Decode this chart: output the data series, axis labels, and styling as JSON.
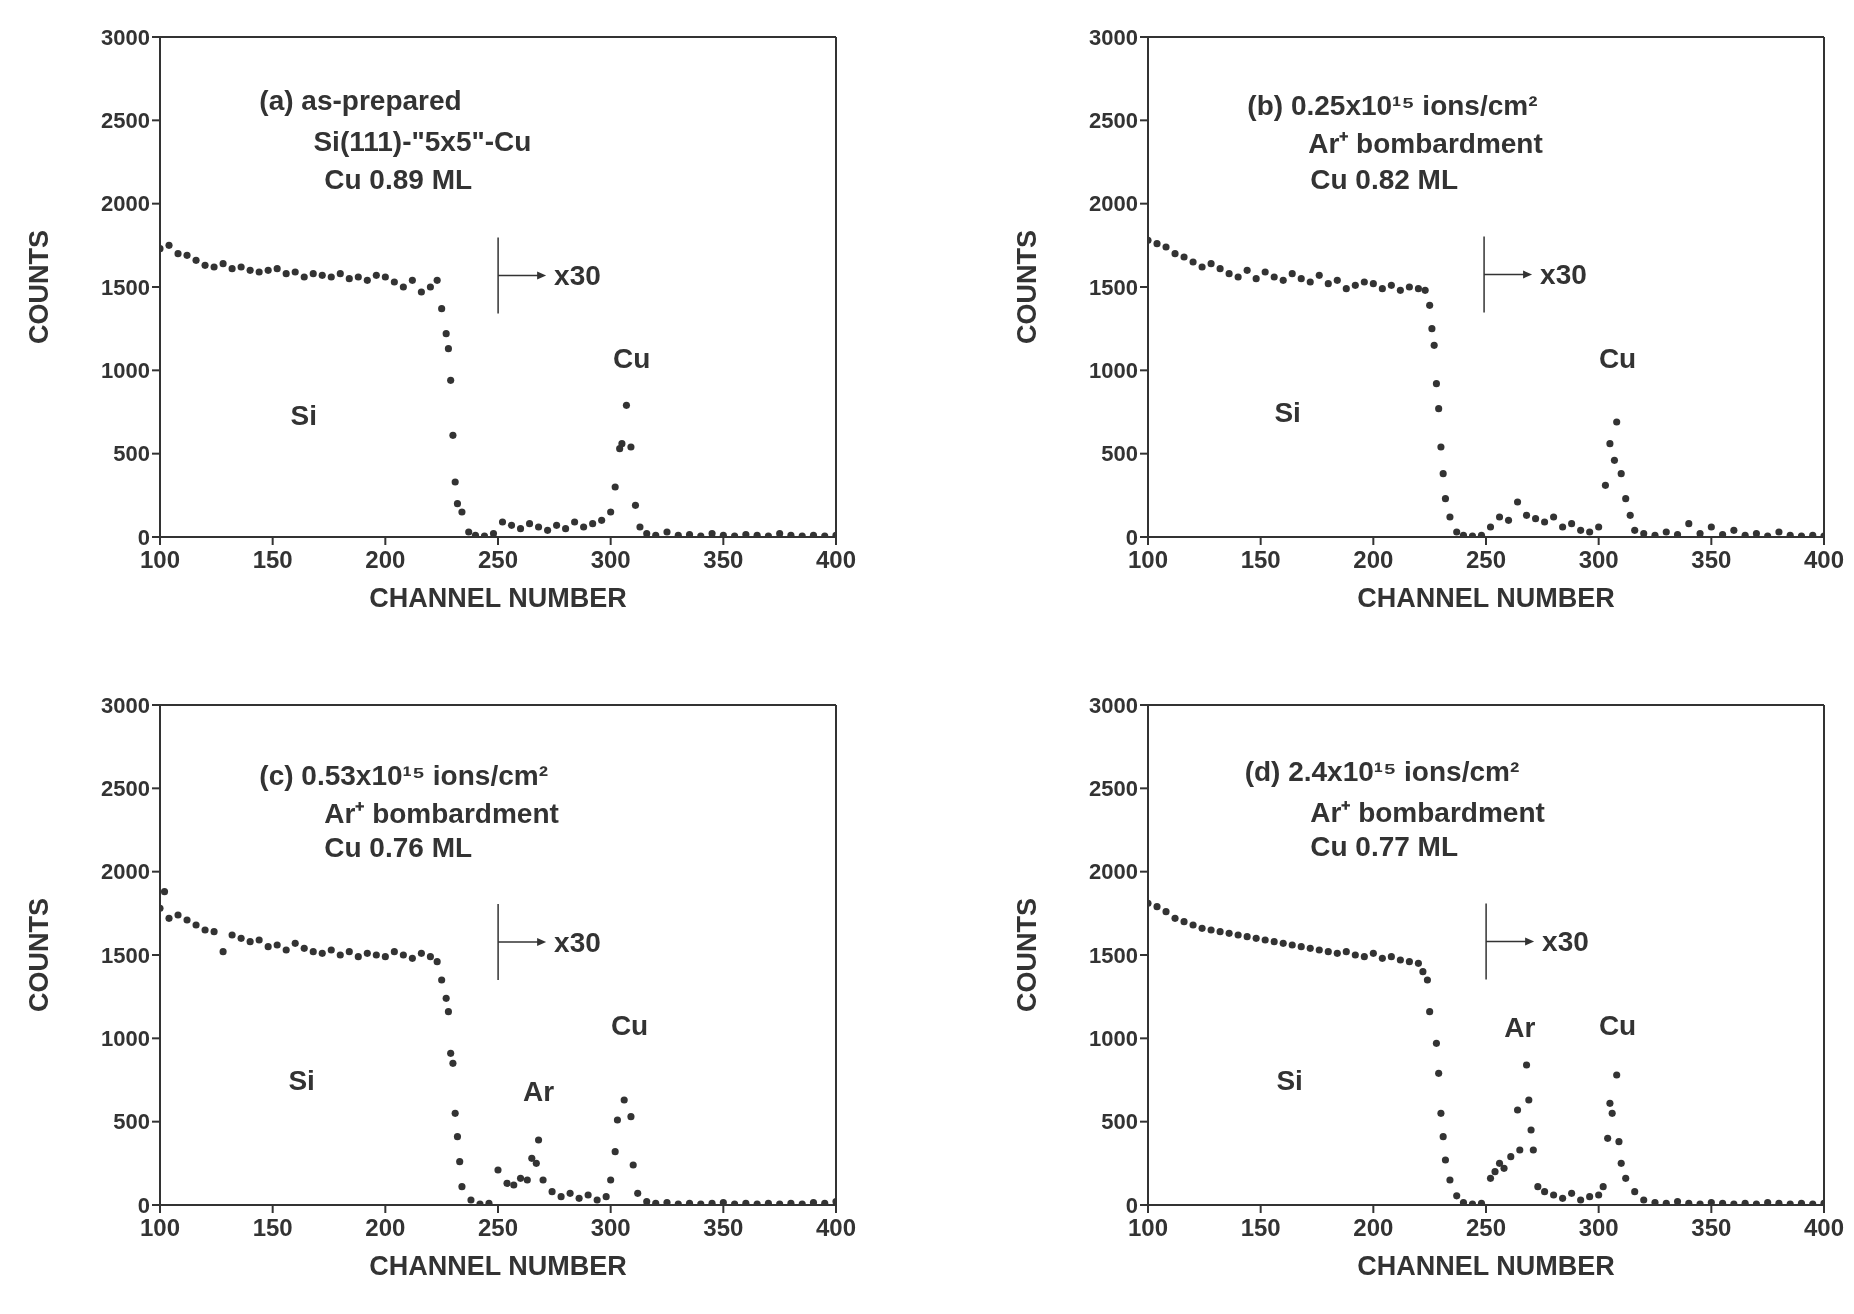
{
  "chart_data": [
    {
      "type": "scatter",
      "xlabel": "CHANNEL NUMBER",
      "ylabel": "COUNTS",
      "color": "#333333",
      "marker": "circle",
      "xlim": [
        100,
        400
      ],
      "xticks": [
        100,
        150,
        200,
        250,
        300,
        350,
        400
      ],
      "ylim": [
        0,
        3000
      ],
      "yticks": [
        0,
        500,
        1000,
        1500,
        2000,
        2500,
        3000
      ],
      "annotations": [
        "(a) as-prepared",
        "Si(111)-\"5x5\"-Cu",
        "Cu 0.89 ML",
        "x30",
        "Si",
        "Cu"
      ],
      "x": [
        100,
        104,
        108,
        112,
        116,
        120,
        124,
        128,
        132,
        136,
        140,
        144,
        148,
        152,
        156,
        160,
        164,
        168,
        172,
        176,
        180,
        184,
        188,
        192,
        196,
        200,
        204,
        208,
        212,
        216,
        220,
        223,
        225,
        227,
        228,
        229,
        230,
        231,
        232,
        234,
        237,
        240,
        244,
        248,
        252,
        256,
        260,
        264,
        268,
        272,
        276,
        280,
        284,
        288,
        292,
        296,
        300,
        302,
        304,
        305,
        307,
        309,
        311,
        313,
        316,
        320,
        325,
        330,
        335,
        340,
        345,
        350,
        355,
        360,
        365,
        370,
        375,
        380,
        385,
        390,
        395,
        400
      ],
      "values": [
        1730,
        1750,
        1700,
        1690,
        1660,
        1630,
        1620,
        1640,
        1610,
        1620,
        1600,
        1590,
        1600,
        1610,
        1580,
        1590,
        1560,
        1580,
        1570,
        1560,
        1580,
        1550,
        1560,
        1540,
        1570,
        1560,
        1530,
        1500,
        1540,
        1470,
        1500,
        1540,
        1370,
        1220,
        1130,
        940,
        610,
        330,
        200,
        150,
        30,
        10,
        5,
        20,
        90,
        70,
        50,
        80,
        60,
        40,
        70,
        50,
        90,
        60,
        80,
        100,
        150,
        300,
        530,
        560,
        790,
        540,
        190,
        60,
        20,
        10,
        30,
        10,
        15,
        5,
        20,
        10,
        5,
        15,
        10,
        5,
        20,
        10,
        5,
        10,
        5,
        10
      ]
    },
    {
      "type": "scatter",
      "xlabel": "CHANNEL NUMBER",
      "ylabel": "COUNTS",
      "color": "#333333",
      "marker": "circle",
      "xlim": [
        100,
        400
      ],
      "xticks": [
        100,
        150,
        200,
        250,
        300,
        350,
        400
      ],
      "ylim": [
        0,
        3000
      ],
      "yticks": [
        0,
        500,
        1000,
        1500,
        2000,
        2500,
        3000
      ],
      "annotations": [
        "(b) 0.25x10¹⁵ ions/cm²",
        "Ar⁺ bombardment",
        "Cu 0.82 ML",
        "x30",
        "Si",
        "Cu"
      ],
      "x": [
        100,
        104,
        108,
        112,
        116,
        120,
        124,
        128,
        132,
        136,
        140,
        144,
        148,
        152,
        156,
        160,
        164,
        168,
        172,
        176,
        180,
        184,
        188,
        192,
        196,
        200,
        204,
        208,
        212,
        216,
        220,
        223,
        225,
        226,
        227,
        228,
        229,
        230,
        231,
        232,
        234,
        237,
        240,
        244,
        248,
        252,
        256,
        260,
        264,
        268,
        272,
        276,
        280,
        284,
        288,
        292,
        296,
        300,
        303,
        305,
        307,
        308,
        310,
        312,
        314,
        316,
        320,
        325,
        330,
        335,
        340,
        345,
        350,
        355,
        360,
        365,
        370,
        375,
        380,
        385,
        390,
        395,
        400
      ],
      "values": [
        1780,
        1760,
        1740,
        1700,
        1680,
        1650,
        1620,
        1640,
        1610,
        1580,
        1560,
        1600,
        1550,
        1590,
        1560,
        1540,
        1580,
        1550,
        1530,
        1570,
        1520,
        1540,
        1490,
        1510,
        1530,
        1520,
        1490,
        1510,
        1480,
        1500,
        1490,
        1480,
        1390,
        1250,
        1150,
        920,
        770,
        540,
        380,
        230,
        120,
        30,
        10,
        5,
        10,
        60,
        120,
        100,
        210,
        130,
        110,
        90,
        120,
        60,
        80,
        40,
        30,
        60,
        310,
        560,
        460,
        690,
        380,
        230,
        130,
        40,
        20,
        10,
        30,
        15,
        80,
        20,
        60,
        15,
        40,
        10,
        20,
        5,
        30,
        10,
        5,
        10,
        5
      ]
    },
    {
      "type": "scatter",
      "xlabel": "CHANNEL NUMBER",
      "ylabel": "COUNTS",
      "color": "#333333",
      "marker": "circle",
      "xlim": [
        100,
        400
      ],
      "xticks": [
        100,
        150,
        200,
        250,
        300,
        350,
        400
      ],
      "ylim": [
        0,
        3000
      ],
      "yticks": [
        0,
        500,
        1000,
        1500,
        2000,
        2500,
        3000
      ],
      "annotations": [
        "(c) 0.53x10¹⁵ ions/cm²",
        "Ar⁺ bombardment",
        "Cu 0.76 ML",
        "x30",
        "Si",
        "Cu",
        "Ar"
      ],
      "x": [
        100,
        102,
        104,
        108,
        112,
        116,
        120,
        124,
        128,
        132,
        136,
        140,
        144,
        148,
        152,
        156,
        160,
        164,
        168,
        172,
        176,
        180,
        184,
        188,
        192,
        196,
        200,
        204,
        208,
        212,
        216,
        220,
        223,
        225,
        227,
        228,
        229,
        230,
        231,
        232,
        233,
        234,
        238,
        242,
        246,
        250,
        254,
        257,
        260,
        263,
        265,
        267,
        268,
        270,
        274,
        278,
        282,
        286,
        290,
        294,
        298,
        300,
        302,
        303,
        306,
        309,
        310,
        312,
        316,
        320,
        325,
        330,
        335,
        340,
        345,
        350,
        355,
        360,
        365,
        370,
        375,
        380,
        385,
        390,
        395,
        400
      ],
      "values": [
        1780,
        1880,
        1720,
        1740,
        1710,
        1680,
        1650,
        1640,
        1520,
        1620,
        1600,
        1580,
        1590,
        1550,
        1560,
        1530,
        1570,
        1540,
        1520,
        1510,
        1530,
        1500,
        1520,
        1490,
        1510,
        1500,
        1490,
        1520,
        1500,
        1480,
        1510,
        1490,
        1460,
        1350,
        1240,
        1160,
        910,
        850,
        550,
        410,
        260,
        110,
        30,
        5,
        10,
        210,
        130,
        120,
        160,
        150,
        280,
        250,
        390,
        150,
        80,
        50,
        70,
        40,
        60,
        30,
        50,
        150,
        320,
        510,
        630,
        530,
        240,
        70,
        20,
        10,
        15,
        5,
        10,
        5,
        10,
        15,
        5,
        10,
        5,
        10,
        5,
        10,
        5,
        15,
        10,
        20
      ]
    },
    {
      "type": "scatter",
      "xlabel": "CHANNEL NUMBER",
      "ylabel": "COUNTS",
      "color": "#333333",
      "marker": "circle",
      "xlim": [
        100,
        400
      ],
      "xticks": [
        100,
        150,
        200,
        250,
        300,
        350,
        400
      ],
      "ylim": [
        0,
        3000
      ],
      "yticks": [
        0,
        500,
        1000,
        1500,
        2000,
        2500,
        3000
      ],
      "annotations": [
        "(d) 2.4x10¹⁵ ions/cm²",
        "Ar⁺ bombardment",
        "Cu 0.77 ML",
        "x30",
        "Si",
        "Ar",
        "Cu"
      ],
      "x": [
        100,
        104,
        108,
        112,
        116,
        120,
        124,
        128,
        132,
        136,
        140,
        144,
        148,
        152,
        156,
        160,
        164,
        168,
        172,
        176,
        180,
        184,
        188,
        192,
        196,
        200,
        204,
        208,
        212,
        216,
        220,
        222,
        224,
        225,
        228,
        229,
        230,
        231,
        232,
        234,
        237,
        240,
        244,
        248,
        252,
        254,
        256,
        258,
        261,
        264,
        265,
        268,
        269,
        270,
        271,
        273,
        276,
        280,
        284,
        288,
        292,
        296,
        300,
        302,
        304,
        305,
        306,
        308,
        309,
        310,
        312,
        316,
        320,
        325,
        330,
        335,
        340,
        345,
        350,
        355,
        360,
        365,
        370,
        375,
        380,
        385,
        390,
        395,
        400
      ],
      "values": [
        1810,
        1790,
        1760,
        1720,
        1700,
        1680,
        1660,
        1650,
        1640,
        1630,
        1620,
        1610,
        1600,
        1590,
        1580,
        1570,
        1560,
        1550,
        1540,
        1530,
        1520,
        1510,
        1520,
        1500,
        1490,
        1510,
        1480,
        1490,
        1470,
        1460,
        1450,
        1400,
        1350,
        1160,
        970,
        790,
        550,
        410,
        270,
        150,
        55,
        15,
        5,
        10,
        160,
        200,
        250,
        220,
        290,
        570,
        330,
        840,
        630,
        450,
        330,
        110,
        80,
        60,
        40,
        70,
        30,
        50,
        60,
        110,
        400,
        610,
        550,
        780,
        380,
        250,
        160,
        80,
        30,
        15,
        10,
        20,
        10,
        5,
        15,
        10,
        5,
        10,
        5,
        15,
        10,
        5,
        10,
        5,
        10
      ]
    }
  ]
}
